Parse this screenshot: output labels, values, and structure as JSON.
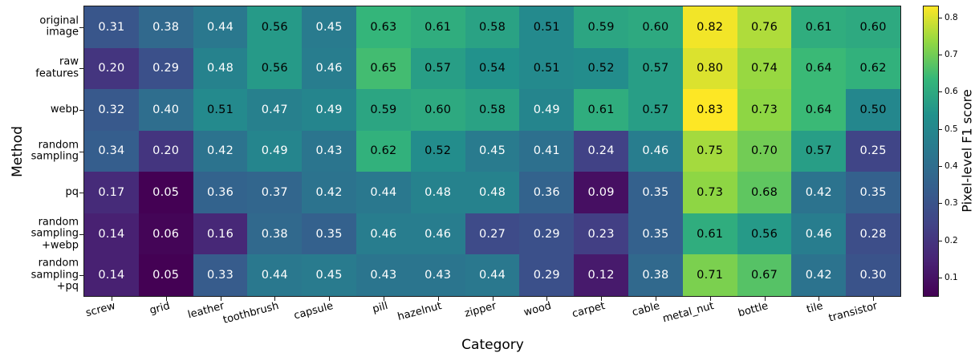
{
  "chart_data": {
    "type": "heatmap",
    "title": "",
    "xlabel": "Category",
    "ylabel": "Method",
    "categories": [
      "screw",
      "grid",
      "leather",
      "toothbrush",
      "capsule",
      "pill",
      "hazelnut",
      "zipper",
      "wood",
      "carpet",
      "cable",
      "metal_nut",
      "bottle",
      "tile",
      "transistor"
    ],
    "methods": [
      "original\nimage",
      "raw\nfeatures",
      "webp",
      "random\nsampling",
      "pq",
      "random\nsampling\n+webp",
      "random\nsampling\n+pq"
    ],
    "values": [
      [
        0.31,
        0.38,
        0.44,
        0.56,
        0.45,
        0.63,
        0.61,
        0.58,
        0.51,
        0.59,
        0.6,
        0.82,
        0.76,
        0.61,
        0.6
      ],
      [
        0.2,
        0.29,
        0.48,
        0.56,
        0.46,
        0.65,
        0.57,
        0.54,
        0.51,
        0.52,
        0.57,
        0.8,
        0.74,
        0.64,
        0.62
      ],
      [
        0.32,
        0.4,
        0.51,
        0.47,
        0.49,
        0.59,
        0.6,
        0.58,
        0.49,
        0.61,
        0.57,
        0.83,
        0.73,
        0.64,
        0.5
      ],
      [
        0.34,
        0.2,
        0.42,
        0.49,
        0.43,
        0.62,
        0.52,
        0.45,
        0.41,
        0.24,
        0.46,
        0.75,
        0.7,
        0.57,
        0.25
      ],
      [
        0.17,
        0.05,
        0.36,
        0.37,
        0.42,
        0.44,
        0.48,
        0.48,
        0.36,
        0.09,
        0.35,
        0.73,
        0.68,
        0.42,
        0.35
      ],
      [
        0.14,
        0.06,
        0.16,
        0.38,
        0.35,
        0.46,
        0.46,
        0.27,
        0.29,
        0.23,
        0.35,
        0.61,
        0.56,
        0.46,
        0.28
      ],
      [
        0.14,
        0.05,
        0.33,
        0.44,
        0.45,
        0.43,
        0.43,
        0.44,
        0.29,
        0.12,
        0.38,
        0.71,
        0.67,
        0.42,
        0.3
      ]
    ],
    "value_format_decimals": 2,
    "vmin": 0.05,
    "vmax": 0.83,
    "colormap": "viridis",
    "colormap_stops": [
      "#440154",
      "#482475",
      "#414487",
      "#355f8d",
      "#2a788e",
      "#21918c",
      "#35b779",
      "#90d743",
      "#fde725"
    ],
    "annotation_black_text_min_value": 0.5,
    "annotation_colors": {
      "dark": "#000000",
      "light": "#ffffff"
    },
    "colorbar": {
      "label": "Pixel-level F1 score",
      "ticks": [
        0.1,
        0.2,
        0.3,
        0.4,
        0.5,
        0.6,
        0.7,
        0.8
      ]
    },
    "grid": false,
    "legend_position": "colorbar-right",
    "x_tick_rotation_deg": -15
  }
}
